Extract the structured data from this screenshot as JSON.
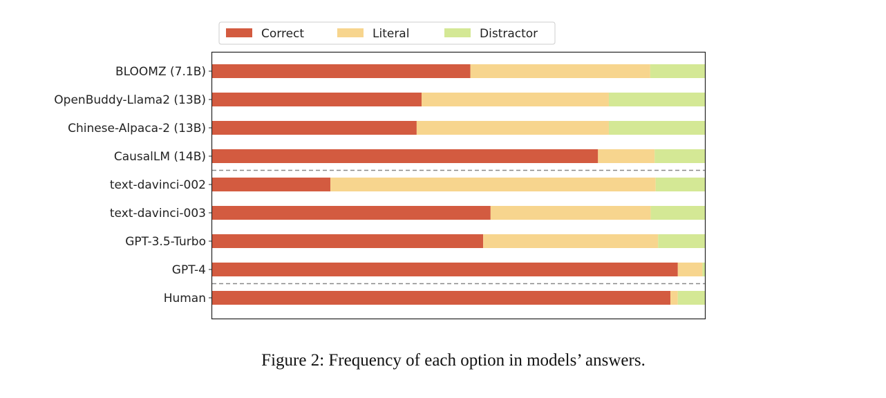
{
  "chart_data": {
    "type": "bar",
    "orientation": "horizontal",
    "stacked": true,
    "xlim": [
      0,
      1
    ],
    "categories": [
      "BLOOMZ (7.1B)",
      "OpenBuddy-Llama2 (13B)",
      "Chinese-Alpaca-2 (13B)",
      "CausalLM (14B)",
      "text-davinci-002",
      "text-davinci-003",
      "GPT-3.5-Turbo",
      "GPT-4",
      "Human"
    ],
    "series": [
      {
        "name": "Correct",
        "color": "#d35b40",
        "values": [
          0.524,
          0.425,
          0.415,
          0.783,
          0.24,
          0.565,
          0.55,
          0.945,
          0.93
        ]
      },
      {
        "name": "Literal",
        "color": "#f7d58e",
        "values": [
          0.365,
          0.38,
          0.39,
          0.115,
          0.66,
          0.325,
          0.355,
          0.05,
          0.015
        ]
      },
      {
        "name": "Distractor",
        "color": "#d4e895",
        "values": [
          0.111,
          0.195,
          0.195,
          0.102,
          0.1,
          0.11,
          0.095,
          0.005,
          0.055
        ]
      }
    ],
    "separators_after": [
      "CausalLM (14B)",
      "GPT-4"
    ],
    "legend": {
      "placement": "top-center",
      "entries": [
        "Correct",
        "Literal",
        "Distractor"
      ]
    },
    "grid": false
  },
  "caption": "Figure 2: Frequency of each option in models’ answers."
}
